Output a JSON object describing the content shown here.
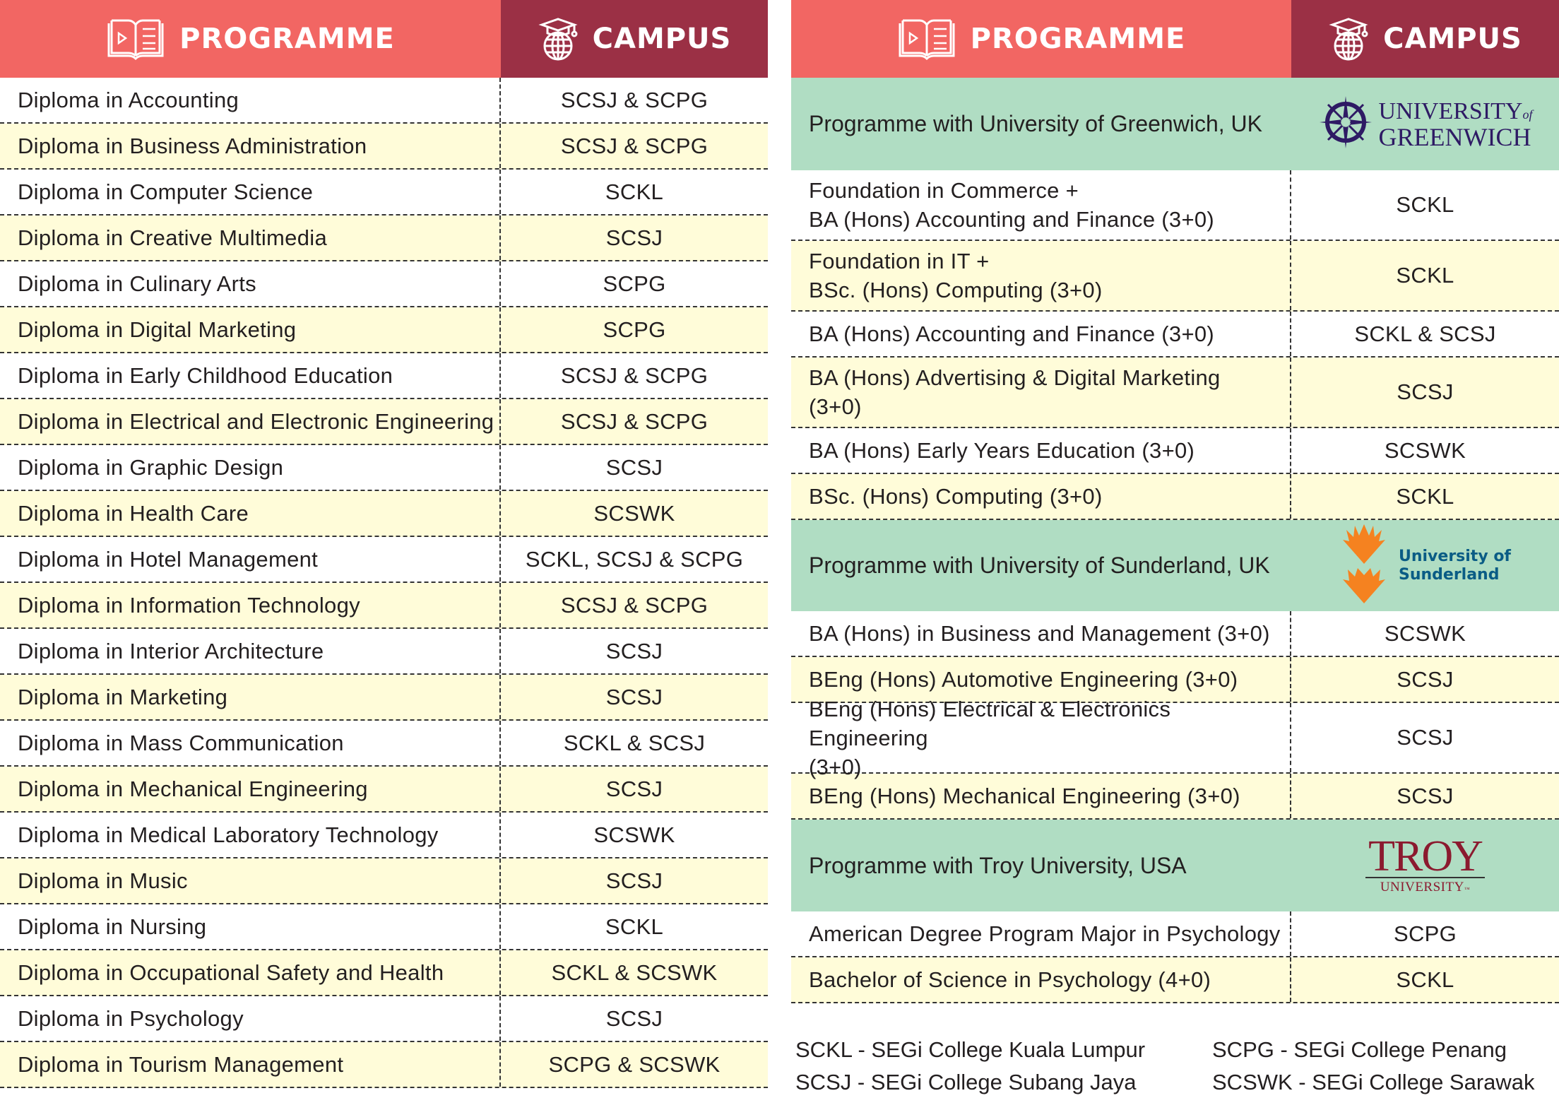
{
  "headers": {
    "programme": "PROGRAMME",
    "campus": "CAMPUS"
  },
  "icons": {
    "programme": "open-book-play-icon",
    "campus": "graduation-globe-icon"
  },
  "colors": {
    "programme_header": "#F26663",
    "campus_header": "#9B3045",
    "stripe": "#FFFCD9",
    "partner_section": "#B0DDC3"
  },
  "diplomas": [
    {
      "programme": "Diploma in Accounting",
      "campus": "SCSJ & SCPG"
    },
    {
      "programme": "Diploma in Business Administration",
      "campus": "SCSJ & SCPG"
    },
    {
      "programme": "Diploma in Computer Science",
      "campus": "SCKL"
    },
    {
      "programme": "Diploma in Creative Multimedia",
      "campus": "SCSJ"
    },
    {
      "programme": "Diploma in Culinary Arts",
      "campus": "SCPG"
    },
    {
      "programme": "Diploma in Digital Marketing",
      "campus": "SCPG"
    },
    {
      "programme": "Diploma in Early Childhood Education",
      "campus": "SCSJ & SCPG"
    },
    {
      "programme": "Diploma in Electrical and Electronic Engineering",
      "campus": "SCSJ & SCPG"
    },
    {
      "programme": "Diploma in Graphic Design",
      "campus": "SCSJ"
    },
    {
      "programme": "Diploma in Health Care",
      "campus": "SCSWK"
    },
    {
      "programme": "Diploma in Hotel Management",
      "campus": "SCKL, SCSJ & SCPG"
    },
    {
      "programme": "Diploma in Information Technology",
      "campus": "SCSJ & SCPG"
    },
    {
      "programme": "Diploma in Interior Architecture",
      "campus": "SCSJ"
    },
    {
      "programme": "Diploma in Marketing",
      "campus": "SCSJ"
    },
    {
      "programme": "Diploma in Mass Communication",
      "campus": "SCKL & SCSJ"
    },
    {
      "programme": "Diploma in Mechanical Engineering",
      "campus": "SCSJ"
    },
    {
      "programme": "Diploma in Medical Laboratory Technology",
      "campus": "SCSWK"
    },
    {
      "programme": "Diploma in Music",
      "campus": "SCSJ"
    },
    {
      "programme": "Diploma in Nursing",
      "campus": "SCKL"
    },
    {
      "programme": "Diploma in Occupational Safety and Health",
      "campus": "SCKL & SCSWK"
    },
    {
      "programme": "Diploma in Psychology",
      "campus": "SCSJ"
    },
    {
      "programme": "Diploma in Tourism Management",
      "campus": "SCPG & SCSWK"
    }
  ],
  "partners": [
    {
      "title": "Programme with University of Greenwich, UK",
      "logo": {
        "line1": "UNIVERSITY",
        "of": "of",
        "line2": "GREENWICH",
        "icon": "compass-rose-icon"
      },
      "programmes": [
        {
          "lines": [
            "Foundation in Commerce +",
            "BA (Hons) Accounting and Finance (3+0)"
          ],
          "campus": "SCKL"
        },
        {
          "lines": [
            "Foundation in IT +",
            "BSc. (Hons) Computing (3+0)"
          ],
          "campus": "SCKL"
        },
        {
          "lines": [
            "BA (Hons) Accounting and Finance (3+0)"
          ],
          "campus": "SCKL & SCSJ"
        },
        {
          "lines": [
            "BA (Hons) Advertising & Digital Marketing",
            "(3+0)"
          ],
          "campus": "SCSJ"
        },
        {
          "lines": [
            "BA (Hons) Early Years Education (3+0)"
          ],
          "campus": "SCSWK"
        },
        {
          "lines": [
            "BSc. (Hons) Computing (3+0)"
          ],
          "campus": "SCKL"
        }
      ]
    },
    {
      "title": "Programme with University of Sunderland, UK",
      "logo": {
        "line1": "University of",
        "line2": "Sunderland",
        "icon": "sunburst-icon"
      },
      "programmes": [
        {
          "lines": [
            "BA (Hons) in Business and Management (3+0)"
          ],
          "campus": "SCSWK"
        },
        {
          "lines": [
            "BEng (Hons) Automotive Engineering (3+0)"
          ],
          "campus": "SCSJ"
        },
        {
          "lines": [
            "BEng (Hons) Electrical & Electronics Engineering",
            "(3+0)"
          ],
          "campus": "SCSJ"
        },
        {
          "lines": [
            "BEng (Hons) Mechanical Engineering (3+0)"
          ],
          "campus": "SCSJ"
        }
      ]
    },
    {
      "title": "Programme with Troy University, USA",
      "logo": {
        "line1": "TROY",
        "line2": "UNIVERSITY",
        "tm": "™"
      },
      "programmes": [
        {
          "lines": [
            "American Degree Program Major in Psychology"
          ],
          "campus": "SCPG"
        },
        {
          "lines": [
            "Bachelor of Science in Psychology (4+0)"
          ],
          "campus": "SCKL"
        }
      ]
    }
  ],
  "legend": [
    "SCKL - SEGi College Kuala Lumpur",
    "SCSJ - SEGi College Subang Jaya",
    "SCPG - SEGi College Penang",
    "SCSWK - SEGi College Sarawak"
  ]
}
